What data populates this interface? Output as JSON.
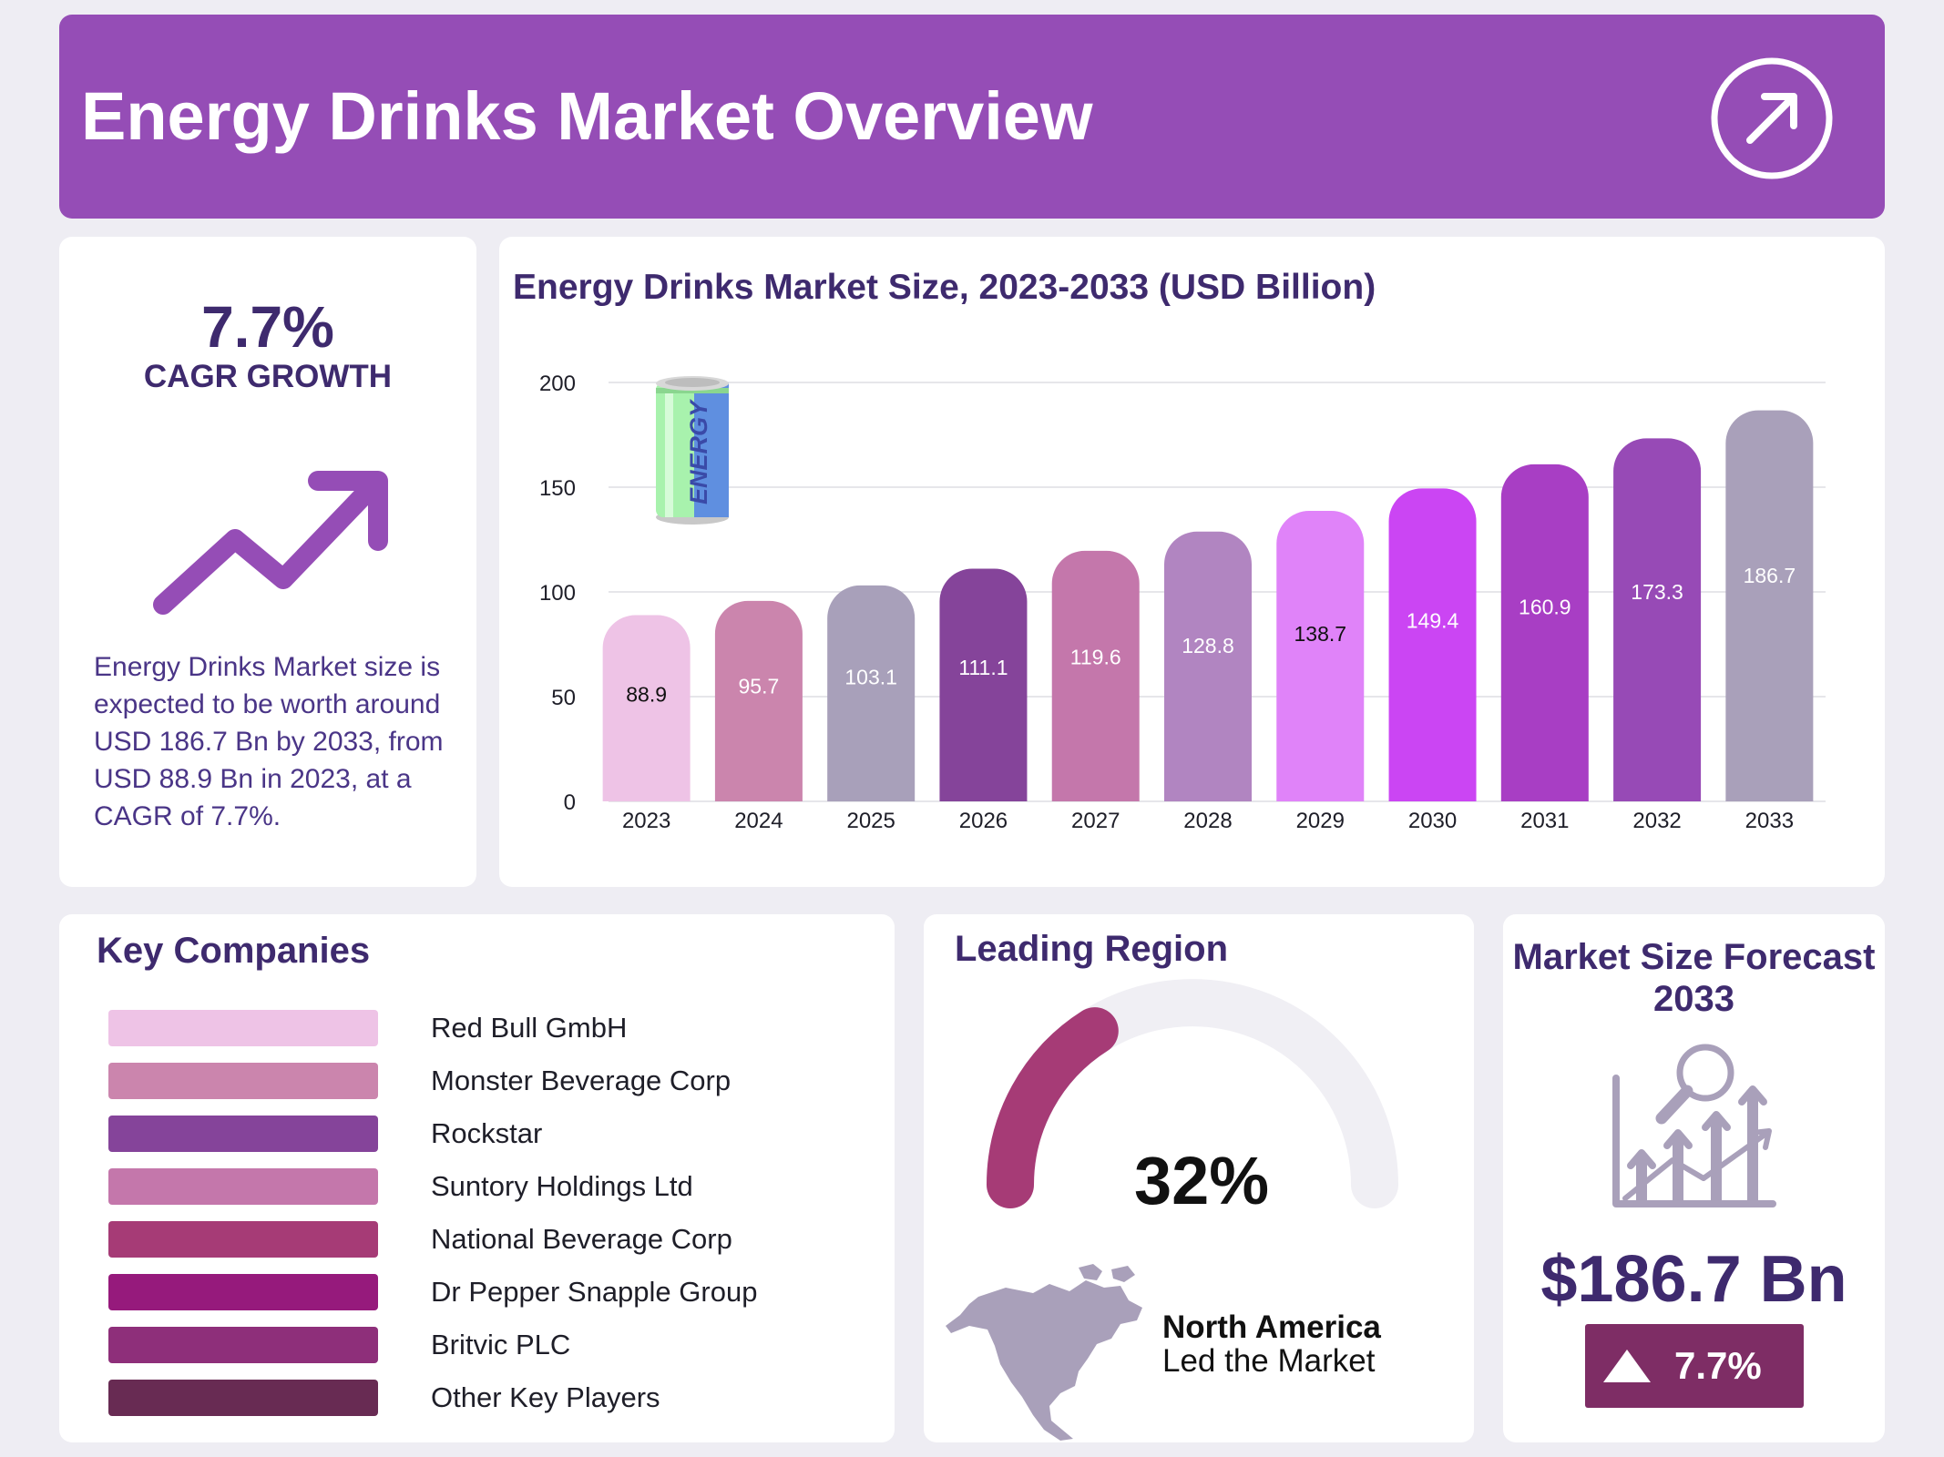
{
  "header": {
    "title": "Energy Drinks Market Overview",
    "icon": "arrow-up-right-circle-icon"
  },
  "cagr_panel": {
    "value": "7.7%",
    "label": "CAGR GROWTH",
    "icon": "trend-up-arrow-icon",
    "description": "Energy Drinks Market size is expected to be worth around USD 186.7 Bn by 2033, from USD 88.9 Bn in 2023, at a CAGR of 7.7%."
  },
  "chart_data": {
    "type": "bar",
    "title": "Energy Drinks Market Size, 2023-2033 (USD Billion)",
    "xlabel": "",
    "ylabel": "",
    "categories": [
      "2023",
      "2024",
      "2025",
      "2026",
      "2027",
      "2028",
      "2029",
      "2030",
      "2031",
      "2032",
      "2033"
    ],
    "values": [
      88.9,
      95.7,
      103.1,
      111.1,
      119.6,
      128.8,
      138.7,
      149.4,
      160.9,
      173.3,
      186.7
    ],
    "value_labels": [
      "88.9",
      "95.7",
      "103.1",
      "111.1",
      "119.6",
      "128.8",
      "138.7",
      "149.4",
      "160.9",
      "173.3",
      "186.7"
    ],
    "colors": [
      "#eec3e6",
      "#cb85ad",
      "#a8a0ba",
      "#85449a",
      "#c477ab",
      "#b185c1",
      "#e083f9",
      "#cb45f3",
      "#a83ec4",
      "#974ab6",
      "#a9a0ba"
    ],
    "label_colors": [
      "#111111",
      "#ffffff",
      "#ffffff",
      "#ffffff",
      "#ffffff",
      "#ffffff",
      "#111111",
      "#ffffff",
      "#ffffff",
      "#ffffff",
      "#ffffff"
    ],
    "yticks": [
      "0",
      "50",
      "100",
      "150",
      "200"
    ],
    "ylim": [
      0,
      200
    ],
    "grid": true,
    "decoration": {
      "icon": "energy-can-icon",
      "text": "ENERGY"
    }
  },
  "companies": {
    "title": "Key Companies",
    "items": [
      {
        "name": "Red Bull GmbH",
        "color": "#eec3e6"
      },
      {
        "name": "Monster Beverage Corp",
        "color": "#cb85ad"
      },
      {
        "name": "Rockstar",
        "color": "#85449a"
      },
      {
        "name": "Suntory Holdings Ltd",
        "color": "#c477ab"
      },
      {
        "name": "National Beverage Corp",
        "color": "#a63b76"
      },
      {
        "name": "Dr Pepper Snapple Group",
        "color": "#961a7c"
      },
      {
        "name": "Britvic PLC",
        "color": "#8e2f7a"
      },
      {
        "name": "Other Key Players",
        "color": "#682b53"
      }
    ]
  },
  "region": {
    "title": "Leading Region",
    "share_label": "32%",
    "share": 0.32,
    "name": "North America",
    "subtitle": "Led the Market",
    "gauge_color": "#a63b76",
    "track_color": "#f0eff4",
    "icon": "north-america-map-icon"
  },
  "forecast": {
    "title": "Market Size Forecast 2033",
    "value": "$186.7 Bn",
    "badge": "7.7%",
    "badge_icon": "triangle-up-icon",
    "icon": "growth-analysis-chart-icon"
  }
}
